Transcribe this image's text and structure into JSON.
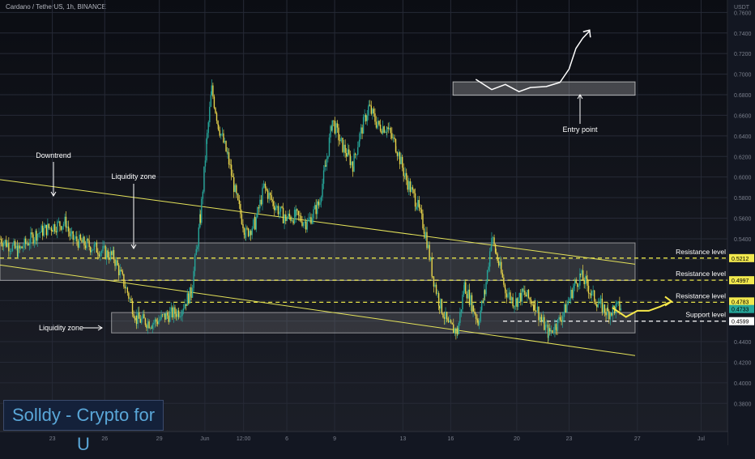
{
  "header": {
    "symbol_line": "Cardano / TetherUS, 1h, BINANCE"
  },
  "watermark": "Solldy - Crypto for U",
  "chart_data": {
    "type": "candlestick",
    "title": "Cardano / TetherUS, 1h, BINANCE",
    "unit": "USDT",
    "ylim": [
      0.37,
      0.775
    ],
    "y_ticks": [
      "0.7600",
      "0.7400",
      "0.7200",
      "0.7000",
      "0.6800",
      "0.6600",
      "0.6400",
      "0.6200",
      "0.6000",
      "0.5800",
      "0.5600",
      "0.5400",
      "0.5200",
      "0.5000",
      "0.4800",
      "0.4600",
      "0.4400",
      "0.4200",
      "0.4000",
      "0.3800"
    ],
    "x_ticks": [
      "23",
      "26",
      "29",
      "Jun",
      "12:00",
      "6",
      "9",
      "13",
      "16",
      "20",
      "23",
      "27",
      "Jul"
    ],
    "price_path": [
      [
        0,
        0.54
      ],
      [
        0.8,
        0.528
      ],
      [
        1.6,
        0.545
      ],
      [
        2.3,
        0.552
      ],
      [
        2.9,
        0.556
      ],
      [
        3.1,
        0.541
      ],
      [
        3.7,
        0.535
      ],
      [
        4.3,
        0.53
      ],
      [
        5,
        0.522
      ],
      [
        5.6,
        0.488
      ],
      [
        6.0,
        0.462
      ],
      [
        6.7,
        0.458
      ],
      [
        7.3,
        0.465
      ],
      [
        7.9,
        0.47
      ],
      [
        8.4,
        0.488
      ],
      [
        8.8,
        0.56
      ],
      [
        9.1,
        0.64
      ],
      [
        9.3,
        0.685
      ],
      [
        9.6,
        0.65
      ],
      [
        10.0,
        0.62
      ],
      [
        10.4,
        0.578
      ],
      [
        10.8,
        0.545
      ],
      [
        11.2,
        0.555
      ],
      [
        11.6,
        0.59
      ],
      [
        12.0,
        0.575
      ],
      [
        12.5,
        0.56
      ],
      [
        13.0,
        0.562
      ],
      [
        13.5,
        0.555
      ],
      [
        14.0,
        0.574
      ],
      [
        14.3,
        0.61
      ],
      [
        14.6,
        0.655
      ],
      [
        15.0,
        0.632
      ],
      [
        15.5,
        0.612
      ],
      [
        15.8,
        0.64
      ],
      [
        16.2,
        0.668
      ],
      [
        16.6,
        0.65
      ],
      [
        17.0,
        0.648
      ],
      [
        17.4,
        0.63
      ],
      [
        17.8,
        0.6
      ],
      [
        18.3,
        0.575
      ],
      [
        18.7,
        0.545
      ],
      [
        19.0,
        0.505
      ],
      [
        19.3,
        0.478
      ],
      [
        19.7,
        0.455
      ],
      [
        20.1,
        0.45
      ],
      [
        20.4,
        0.495
      ],
      [
        20.8,
        0.472
      ],
      [
        21.0,
        0.46
      ],
      [
        21.3,
        0.488
      ],
      [
        21.6,
        0.542
      ],
      [
        21.8,
        0.525
      ],
      [
        22.2,
        0.49
      ],
      [
        22.6,
        0.478
      ],
      [
        23.0,
        0.487
      ],
      [
        23.5,
        0.476
      ],
      [
        23.8,
        0.46
      ],
      [
        24.1,
        0.448
      ],
      [
        24.5,
        0.458
      ],
      [
        24.8,
        0.47
      ],
      [
        25.2,
        0.493
      ],
      [
        25.5,
        0.504
      ],
      [
        25.8,
        0.495
      ],
      [
        26.0,
        0.485
      ],
      [
        26.4,
        0.475
      ],
      [
        26.7,
        0.468
      ],
      [
        27.0,
        0.472
      ],
      [
        27.3,
        0.474
      ]
    ],
    "projection_path": [
      [
        27.3,
        0.473
      ],
      [
        27.9,
        0.464
      ],
      [
        28.4,
        0.47
      ],
      [
        28.9,
        0.47
      ],
      [
        29.4,
        0.474
      ],
      [
        29.9,
        0.479
      ]
    ],
    "entry_curve": [
      [
        22.9,
        0.695
      ],
      [
        23.6,
        0.685
      ],
      [
        24.2,
        0.69
      ],
      [
        24.8,
        0.683
      ],
      [
        25.3,
        0.687
      ],
      [
        26.0,
        0.688
      ],
      [
        26.6,
        0.692
      ],
      [
        27.0,
        0.705
      ],
      [
        27.3,
        0.725
      ],
      [
        27.6,
        0.735
      ],
      [
        27.9,
        0.742
      ]
    ],
    "entry_box": {
      "x": [
        21.6,
        30.0
      ],
      "y": [
        0.6795,
        0.6925
      ]
    },
    "channel": {
      "upper": [
        [
          0,
          0.5975
        ],
        [
          30,
          0.5165
        ]
      ],
      "lower": [
        [
          0,
          0.5145
        ],
        [
          30,
          0.4265
        ]
      ]
    },
    "zones": [
      {
        "x": [
          0,
          30
        ],
        "y": [
          0.4995,
          0.536
        ]
      },
      {
        "x": [
          4.9,
          30
        ],
        "y": [
          0.4485,
          0.4683
        ]
      }
    ],
    "levels": [
      {
        "label": "Resistance level",
        "value": 0.5212,
        "color": "#e7e34a",
        "from": 0
      },
      {
        "label": "Resistance level",
        "value": 0.4997,
        "color": "#e7e34a",
        "from": 5.5
      },
      {
        "label": "Resistance level",
        "value": 0.4783,
        "color": "#e7e34a",
        "from": 6.0
      },
      {
        "label": "Support level",
        "value": 0.4599,
        "color": "#ffffff",
        "from": 22.5
      }
    ],
    "current_price": {
      "value": 0.4733,
      "color": "#26a69a"
    },
    "price_tags": [
      "0.5212",
      "0.4997",
      "0.4783",
      "0.4733",
      "0.4599"
    ],
    "annotations": {
      "downtrend": "Downtrend",
      "liquidity_zone_top": "Liquidity zone",
      "liquidity_zone_left": "Liquidity zone",
      "entry_point": "Entry point"
    },
    "colors": {
      "up": "#26a69a",
      "down": "#e7d44a",
      "trendline": "#e5e35a",
      "grid": "#262a36",
      "axis_text": "#7a7f8c"
    }
  }
}
